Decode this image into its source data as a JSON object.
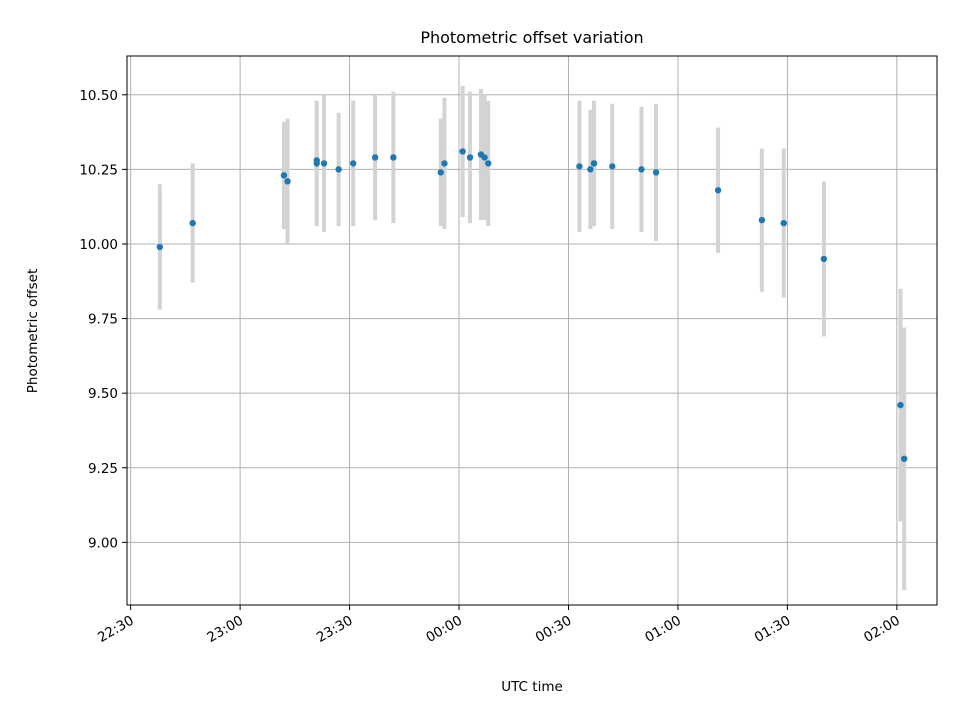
{
  "chart_data": {
    "type": "scatter",
    "title": "Photometric offset variation",
    "xlabel": "UTC time",
    "ylabel": "Photometric offset",
    "x_is_time": true,
    "x_start_label": "22:30",
    "xlim": [
      "22:29",
      "02:11"
    ],
    "ylim": [
      8.79,
      10.63
    ],
    "x_ticks": [
      "22:30",
      "23:00",
      "23:30",
      "00:00",
      "00:30",
      "01:00",
      "01:30",
      "02:00"
    ],
    "y_ticks": [
      "9.00",
      "9.25",
      "9.50",
      "9.75",
      "10.00",
      "10.25",
      "10.50"
    ],
    "grid": true,
    "marker_color": "#1f77b4",
    "errorbar_color": "#d3d3d3",
    "points": [
      {
        "time": "22:38",
        "y": 9.99,
        "err": 0.21
      },
      {
        "time": "22:47",
        "y": 10.07,
        "err": 0.2
      },
      {
        "time": "23:12",
        "y": 10.23,
        "err": 0.18
      },
      {
        "time": "23:13",
        "y": 10.21,
        "err": 0.21
      },
      {
        "time": "23:21",
        "y": 10.27,
        "err": 0.21
      },
      {
        "time": "23:21",
        "y": 10.28,
        "err": 0.2
      },
      {
        "time": "23:23",
        "y": 10.27,
        "err": 0.23
      },
      {
        "time": "23:27",
        "y": 10.25,
        "err": 0.19
      },
      {
        "time": "23:31",
        "y": 10.27,
        "err": 0.21
      },
      {
        "time": "23:37",
        "y": 10.29,
        "err": 0.21
      },
      {
        "time": "23:42",
        "y": 10.29,
        "err": 0.22
      },
      {
        "time": "23:55",
        "y": 10.24,
        "err": 0.18
      },
      {
        "time": "23:56",
        "y": 10.27,
        "err": 0.22
      },
      {
        "time": "00:01",
        "y": 10.31,
        "err": 0.22
      },
      {
        "time": "00:03",
        "y": 10.29,
        "err": 0.22
      },
      {
        "time": "00:06",
        "y": 10.3,
        "err": 0.22
      },
      {
        "time": "00:07",
        "y": 10.29,
        "err": 0.21
      },
      {
        "time": "00:08",
        "y": 10.27,
        "err": 0.21
      },
      {
        "time": "00:33",
        "y": 10.26,
        "err": 0.22
      },
      {
        "time": "00:36",
        "y": 10.25,
        "err": 0.2
      },
      {
        "time": "00:37",
        "y": 10.27,
        "err": 0.21
      },
      {
        "time": "00:37",
        "y": 10.27,
        "err": 0.21
      },
      {
        "time": "00:42",
        "y": 10.26,
        "err": 0.21
      },
      {
        "time": "00:50",
        "y": 10.25,
        "err": 0.21
      },
      {
        "time": "00:54",
        "y": 10.24,
        "err": 0.23
      },
      {
        "time": "01:11",
        "y": 10.18,
        "err": 0.21
      },
      {
        "time": "01:23",
        "y": 10.08,
        "err": 0.24
      },
      {
        "time": "01:29",
        "y": 10.07,
        "err": 0.25
      },
      {
        "time": "01:40",
        "y": 9.95,
        "err": 0.26
      },
      {
        "time": "02:01",
        "y": 9.46,
        "err": 0.39
      },
      {
        "time": "02:02",
        "y": 9.28,
        "err": 0.44
      }
    ]
  }
}
